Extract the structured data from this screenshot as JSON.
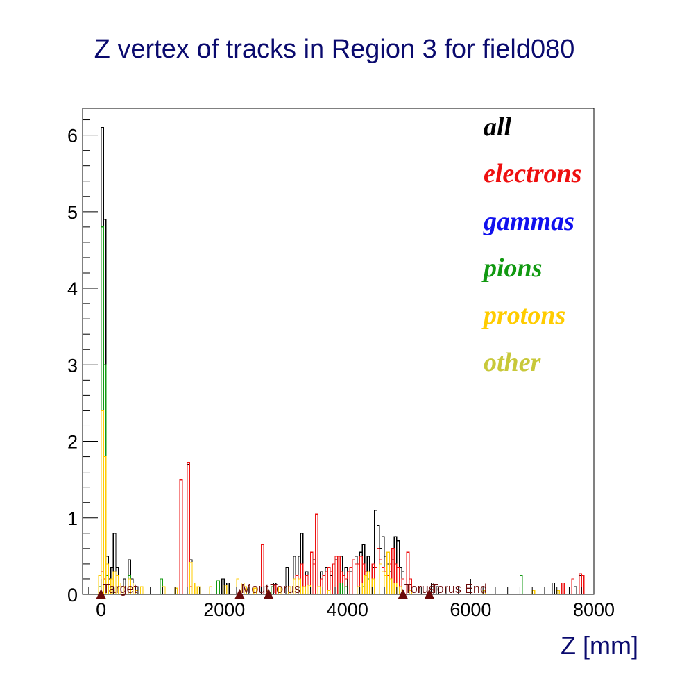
{
  "chart_data": {
    "type": "step-histogram",
    "title": "Z vertex of tracks in Region 3 for field080",
    "xlabel": "Z [mm]",
    "ylabel": "",
    "xlim": [
      -300,
      8000
    ],
    "ylim": [
      0,
      6.35
    ],
    "x_ticks": [
      0,
      2000,
      4000,
      6000,
      8000
    ],
    "x_tick_labels": [
      "0",
      "2000",
      "4000",
      "6000",
      "8000"
    ],
    "y_ticks": [
      0,
      1,
      2,
      3,
      4,
      5,
      6
    ],
    "y_tick_labels": [
      "0",
      "1",
      "2",
      "3",
      "4",
      "5",
      "6"
    ],
    "bin_width": 40,
    "grid": false,
    "legend_position": "top-right",
    "colors": {
      "title": "#0a0a6e",
      "markers": "#6b0a0a"
    },
    "series": [
      {
        "name": "all",
        "color": "#000000",
        "bins": [
          [
            -40,
            0.25
          ],
          [
            0,
            6.1
          ],
          [
            40,
            4.9
          ],
          [
            80,
            0.5
          ],
          [
            120,
            0.2
          ],
          [
            160,
            0.35
          ],
          [
            200,
            0.8
          ],
          [
            240,
            0.35
          ],
          [
            280,
            0.15
          ],
          [
            360,
            0.2
          ],
          [
            440,
            0.45
          ],
          [
            480,
            0.2
          ],
          [
            560,
            0.1
          ],
          [
            960,
            0.2
          ],
          [
            1280,
            1.5
          ],
          [
            1400,
            1.7
          ],
          [
            1440,
            0.45
          ],
          [
            1960,
            0.2
          ],
          [
            2040,
            0.15
          ],
          [
            2280,
            0.15
          ],
          [
            2600,
            0.65
          ],
          [
            2800,
            0.15
          ],
          [
            3000,
            0.35
          ],
          [
            3120,
            0.5
          ],
          [
            3200,
            0.5
          ],
          [
            3240,
            0.8
          ],
          [
            3320,
            0.3
          ],
          [
            3440,
            0.45
          ],
          [
            3480,
            1.05
          ],
          [
            3560,
            0.3
          ],
          [
            3640,
            0.35
          ],
          [
            3720,
            0.25
          ],
          [
            3800,
            0.45
          ],
          [
            3880,
            0.5
          ],
          [
            3960,
            0.35
          ],
          [
            4040,
            0.3
          ],
          [
            4080,
            0.45
          ],
          [
            4120,
            0.5
          ],
          [
            4200,
            0.55
          ],
          [
            4240,
            0.65
          ],
          [
            4320,
            0.5
          ],
          [
            4400,
            0.35
          ],
          [
            4440,
            1.1
          ],
          [
            4480,
            0.9
          ],
          [
            4520,
            0.6
          ],
          [
            4560,
            0.75
          ],
          [
            4600,
            0.5
          ],
          [
            4640,
            0.4
          ],
          [
            4680,
            0.3
          ],
          [
            4720,
            0.45
          ],
          [
            4760,
            0.75
          ],
          [
            4800,
            0.7
          ],
          [
            4840,
            0.35
          ],
          [
            4880,
            0.3
          ],
          [
            4960,
            0.55
          ],
          [
            5000,
            0.2
          ],
          [
            5360,
            0.15
          ],
          [
            5440,
            0.1
          ],
          [
            6800,
            0.25
          ],
          [
            7320,
            0.15
          ],
          [
            7640,
            0.2
          ],
          [
            7680,
            0.1
          ],
          [
            7760,
            0.25
          ],
          [
            7800,
            0.25
          ]
        ]
      },
      {
        "name": "electrons",
        "color": "#ee1010",
        "bins": [
          [
            -40,
            0.25
          ],
          [
            0,
            0.3
          ],
          [
            40,
            0.2
          ],
          [
            1280,
            1.5
          ],
          [
            1400,
            1.72
          ],
          [
            1440,
            0.1
          ],
          [
            2240,
            0.15
          ],
          [
            2600,
            0.65
          ],
          [
            2800,
            0.12
          ],
          [
            3160,
            0.25
          ],
          [
            3240,
            0.4
          ],
          [
            3320,
            0.25
          ],
          [
            3400,
            0.55
          ],
          [
            3440,
            0.4
          ],
          [
            3480,
            1.05
          ],
          [
            3560,
            0.2
          ],
          [
            3600,
            0.25
          ],
          [
            3640,
            0.3
          ],
          [
            3680,
            0.35
          ],
          [
            3720,
            0.3
          ],
          [
            3760,
            0.4
          ],
          [
            3800,
            0.5
          ],
          [
            3840,
            0.5
          ],
          [
            3880,
            0.3
          ],
          [
            3920,
            0.25
          ],
          [
            3960,
            0.2
          ],
          [
            4000,
            0.3
          ],
          [
            4040,
            0.35
          ],
          [
            4080,
            0.45
          ],
          [
            4120,
            0.4
          ],
          [
            4160,
            0.4
          ],
          [
            4200,
            0.5
          ],
          [
            4240,
            0.4
          ],
          [
            4280,
            0.3
          ],
          [
            4320,
            0.15
          ],
          [
            4400,
            0.4
          ],
          [
            4440,
            0.35
          ],
          [
            4480,
            0.6
          ],
          [
            4520,
            0.45
          ],
          [
            4560,
            0.35
          ],
          [
            4600,
            0.3
          ],
          [
            4640,
            0.25
          ],
          [
            4680,
            0.4
          ],
          [
            4720,
            0.6
          ],
          [
            4760,
            0.4
          ],
          [
            4800,
            0.35
          ],
          [
            4840,
            0.15
          ],
          [
            4880,
            0.2
          ],
          [
            4960,
            0.55
          ],
          [
            5000,
            0.2
          ],
          [
            7480,
            0.15
          ],
          [
            7640,
            0.2
          ],
          [
            7760,
            0.27
          ],
          [
            7800,
            0.25
          ]
        ]
      },
      {
        "name": "gammas",
        "color": "#1010ee",
        "bins": []
      },
      {
        "name": "pions",
        "color": "#119911",
        "bins": [
          [
            -40,
            0.1
          ],
          [
            0,
            4.8
          ],
          [
            40,
            3.0
          ],
          [
            80,
            0.25
          ],
          [
            200,
            0.3
          ],
          [
            440,
            0.25
          ],
          [
            960,
            0.2
          ],
          [
            1880,
            0.18
          ],
          [
            2760,
            0.1
          ],
          [
            3120,
            0.2
          ],
          [
            3880,
            0.15
          ],
          [
            3960,
            0.1
          ],
          [
            4240,
            0.1
          ],
          [
            4320,
            0.2
          ],
          [
            6800,
            0.25
          ]
        ]
      },
      {
        "name": "protons",
        "color": "#ffcc00",
        "bins": [
          [
            -40,
            0.25
          ],
          [
            0,
            2.4
          ],
          [
            40,
            1.8
          ],
          [
            80,
            0.4
          ],
          [
            120,
            0.15
          ],
          [
            160,
            0.2
          ],
          [
            200,
            0.3
          ],
          [
            240,
            0.25
          ],
          [
            280,
            0.15
          ],
          [
            360,
            0.1
          ],
          [
            440,
            0.2
          ],
          [
            480,
            0.15
          ],
          [
            560,
            0.05
          ],
          [
            640,
            0.1
          ],
          [
            1000,
            0.1
          ],
          [
            1200,
            0.08
          ],
          [
            1440,
            0.42
          ],
          [
            1480,
            0.15
          ],
          [
            1560,
            0.1
          ],
          [
            1760,
            0.1
          ],
          [
            2000,
            0.12
          ],
          [
            2200,
            0.2
          ],
          [
            2280,
            0.15
          ],
          [
            2320,
            0.1
          ],
          [
            2480,
            0.08
          ],
          [
            2680,
            0.05
          ],
          [
            2880,
            0.1
          ],
          [
            3040,
            0.1
          ],
          [
            3120,
            0.2
          ],
          [
            3160,
            0.15
          ],
          [
            3200,
            0.2
          ],
          [
            3280,
            0.1
          ],
          [
            3360,
            0.12
          ],
          [
            3520,
            0.1
          ],
          [
            3680,
            0.05
          ],
          [
            4160,
            0.1
          ],
          [
            4240,
            0.15
          ],
          [
            4280,
            0.25
          ],
          [
            4320,
            0.3
          ],
          [
            4360,
            0.15
          ],
          [
            4400,
            0.2
          ],
          [
            4480,
            0.15
          ],
          [
            4520,
            0.4
          ],
          [
            4560,
            0.3
          ],
          [
            4600,
            0.25
          ],
          [
            4640,
            0.55
          ],
          [
            4680,
            0.2
          ],
          [
            4760,
            0.15
          ],
          [
            4840,
            0.1
          ],
          [
            5000,
            0.05
          ],
          [
            6200,
            0.05
          ],
          [
            7000,
            0.05
          ],
          [
            7400,
            0.05
          ]
        ]
      },
      {
        "name": "other",
        "color": "#c8c83a",
        "bins": []
      }
    ],
    "markers": [
      {
        "x": 0,
        "label": "Target"
      },
      {
        "x": 2250,
        "label": "Mout"
      },
      {
        "x": 2720,
        "label": "Torus"
      },
      {
        "x": 4900,
        "label": "Torus"
      },
      {
        "x": 5330,
        "label": "Torus End"
      }
    ]
  }
}
